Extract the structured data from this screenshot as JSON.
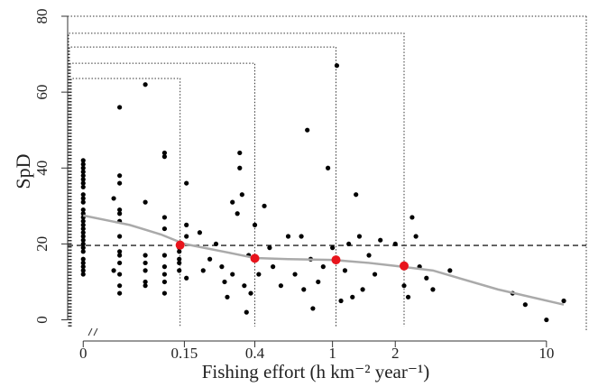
{
  "chart_data": {
    "type": "scatter",
    "x_label": "Fishing effort (h km⁻² year⁻¹)",
    "y_label": "SpD",
    "xscale": "log",
    "xlim": [
      -0.012,
      15.2
    ],
    "ylim": [
      -3.2,
      80
    ],
    "xticks": [
      0,
      0.15,
      0.4,
      1,
      2,
      10
    ],
    "yticks": [
      0,
      20,
      40,
      60,
      80
    ],
    "color": "#000000",
    "x": [
      0,
      0,
      0,
      0,
      0,
      0,
      0,
      0,
      0,
      0,
      0,
      0,
      0,
      0,
      0,
      0,
      0,
      0,
      0,
      0,
      0,
      0,
      0,
      0,
      0,
      0,
      0,
      0,
      0.03,
      0.03,
      0.037,
      0.037,
      0.037,
      0.037,
      0.037,
      0.037,
      0.037,
      0.037,
      0.037,
      0.037,
      0.037,
      0.037,
      0.037,
      0.073,
      0.073,
      0.073,
      0.073,
      0.073,
      0.073,
      0.073,
      0.107,
      0.107,
      0.107,
      0.107,
      0.107,
      0.107,
      0.107,
      0.107,
      0.107,
      0.138,
      0.138,
      0.138,
      0.138,
      0.138,
      0.155,
      0.155,
      0.155,
      0.155,
      0.19,
      0.2,
      0.22,
      0.24,
      0.26,
      0.27,
      0.28,
      0.3,
      0.3,
      0.32,
      0.33,
      0.33,
      0.34,
      0.35,
      0.36,
      0.37,
      0.38,
      0.4,
      0.42,
      0.45,
      0.48,
      0.5,
      0.55,
      0.6,
      0.65,
      0.7,
      0.72,
      0.75,
      0.78,
      0.8,
      0.85,
      0.9,
      0.95,
      1.0,
      1.05,
      1.1,
      1.15,
      1.2,
      1.25,
      1.3,
      1.35,
      1.4,
      1.5,
      1.6,
      1.7,
      2.0,
      2.2,
      2.3,
      2.4,
      2.5,
      2.6,
      2.8,
      3.0,
      3.6,
      7.0,
      8.0,
      10.0,
      12.0
    ],
    "values": [
      42,
      41,
      40,
      39,
      38,
      37,
      36,
      35,
      33,
      32,
      31,
      29,
      28,
      27,
      26,
      25,
      24,
      23,
      22,
      21,
      20,
      19,
      18,
      16,
      15,
      14,
      13,
      12,
      32,
      13,
      56,
      38,
      36,
      29,
      28,
      26,
      22,
      18,
      17,
      15,
      12,
      9,
      7,
      62,
      31,
      17,
      15,
      13,
      10,
      9,
      44,
      43,
      27,
      24,
      17,
      14,
      12,
      10,
      7,
      19,
      18,
      15,
      13,
      16,
      36,
      25,
      22,
      11,
      23,
      13,
      16,
      20,
      14,
      10,
      6,
      31,
      12,
      28,
      40,
      44,
      33,
      9,
      2,
      17,
      7,
      25,
      12,
      30,
      19,
      14,
      9,
      22,
      12,
      22,
      8,
      50,
      16,
      3,
      10,
      14,
      40,
      19,
      67,
      5,
      13,
      20,
      6,
      33,
      22,
      8,
      17,
      12,
      21,
      20,
      9,
      6,
      27,
      22,
      14,
      11,
      8,
      13,
      7,
      4,
      0,
      5
    ],
    "smooth": {
      "color": "#aaaaaa",
      "x": [
        0,
        0.05,
        0.1,
        0.15,
        0.3,
        0.4,
        0.6,
        1,
        1.5,
        2,
        3,
        6,
        12
      ],
      "values": [
        27.5,
        25,
        22.5,
        20,
        17.5,
        16.3,
        16,
        15.8,
        15,
        14.2,
        13,
        8,
        4
      ]
    },
    "breakpoints": {
      "color": "#e8141c",
      "x": [
        0.14,
        0.4,
        1.04,
        2.2
      ],
      "values": [
        19.7,
        16.2,
        15.8,
        14.2
      ]
    },
    "reference_line": 19.6,
    "threshold_boxes": {
      "x": [
        0.14,
        0.4,
        1.04,
        2.2
      ],
      "values": [
        63.6,
        67.6,
        71.9,
        75.5
      ]
    }
  }
}
